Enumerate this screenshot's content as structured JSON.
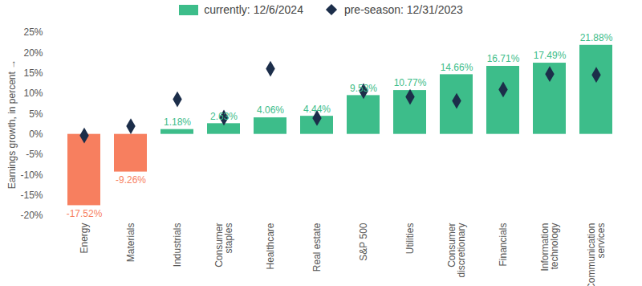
{
  "chart_data": {
    "type": "bar",
    "y_label": "Earnings growth, in percent",
    "categories": [
      "Energy",
      "Materials",
      "Industrials",
      "Consumer staples",
      "Healthcare",
      "Real estate",
      "S&P 500",
      "Utilities",
      "Consumer discretionary",
      "Financials",
      "Information technology",
      "Communication services"
    ],
    "series": [
      {
        "name": "currently: 12/6/2024",
        "type": "bar",
        "data_labels": true,
        "color": "#3dbd8a",
        "colors": [
          "#f77f5f",
          "#f77f5f",
          "#3dbd8a",
          "#3dbd8a",
          "#3dbd8a",
          "#3dbd8a",
          "#3dbd8a",
          "#3dbd8a",
          "#3dbd8a",
          "#3dbd8a",
          "#3dbd8a",
          "#3dbd8a"
        ],
        "values": [
          -17.52,
          -9.26,
          1.18,
          2.63,
          4.06,
          4.44,
          9.53,
          10.77,
          14.66,
          16.71,
          17.49,
          21.88
        ],
        "value_labels": [
          "-17.52%",
          "-9.26%",
          "1.18%",
          "2.63%",
          "4.06%",
          "4.44%",
          "9.53%",
          "10.77%",
          "14.66%",
          "16.71%",
          "17.49%",
          "21.88%"
        ]
      },
      {
        "name": "pre-season: 12/31/2023",
        "type": "scatter",
        "marker": "diamond",
        "color": "#1c2e4a",
        "values": [
          -0.3,
          2.0,
          8.6,
          4.1,
          16.1,
          4.0,
          10.6,
          9.2,
          8.2,
          11.0,
          14.8,
          14.6
        ]
      }
    ],
    "ylim": [
      -20,
      25
    ],
    "yticks": [
      {
        "value": -20,
        "label": "-20%"
      },
      {
        "value": -15,
        "label": "-15%"
      },
      {
        "value": -10,
        "label": "-10%"
      },
      {
        "value": -5,
        "label": "-5%"
      },
      {
        "value": 0,
        "label": "0%"
      },
      {
        "value": 5,
        "label": "5%"
      },
      {
        "value": 10,
        "label": "10%"
      },
      {
        "value": 15,
        "label": "15%"
      },
      {
        "value": 20,
        "label": "20%"
      },
      {
        "value": 25,
        "label": "25%"
      }
    ],
    "grid": false,
    "legend": "top"
  }
}
